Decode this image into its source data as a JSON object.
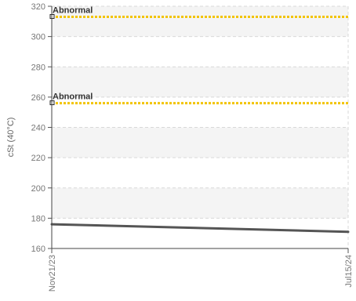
{
  "chart_data": {
    "type": "line",
    "title": "",
    "xlabel": "",
    "ylabel": "cSt (40°C)",
    "ylim": [
      160,
      320
    ],
    "yticks": [
      160,
      180,
      200,
      220,
      240,
      260,
      280,
      300,
      320
    ],
    "x_tick_labels": [
      "Nov21/23",
      "Jul15/24"
    ],
    "grid": true,
    "bands": "alternating light gray between gridlines",
    "series": [
      {
        "color": "#555555",
        "points": [
          {
            "x": "Nov21/23",
            "y": 176
          },
          {
            "x": "Jul15/24",
            "y": 171
          }
        ]
      }
    ],
    "thresholds": [
      {
        "label": "Abnormal",
        "value": 313,
        "color": "#f2c400",
        "style": "dotted"
      },
      {
        "label": "Abnormal",
        "value": 256,
        "color": "#f2c400",
        "style": "dotted"
      }
    ]
  }
}
